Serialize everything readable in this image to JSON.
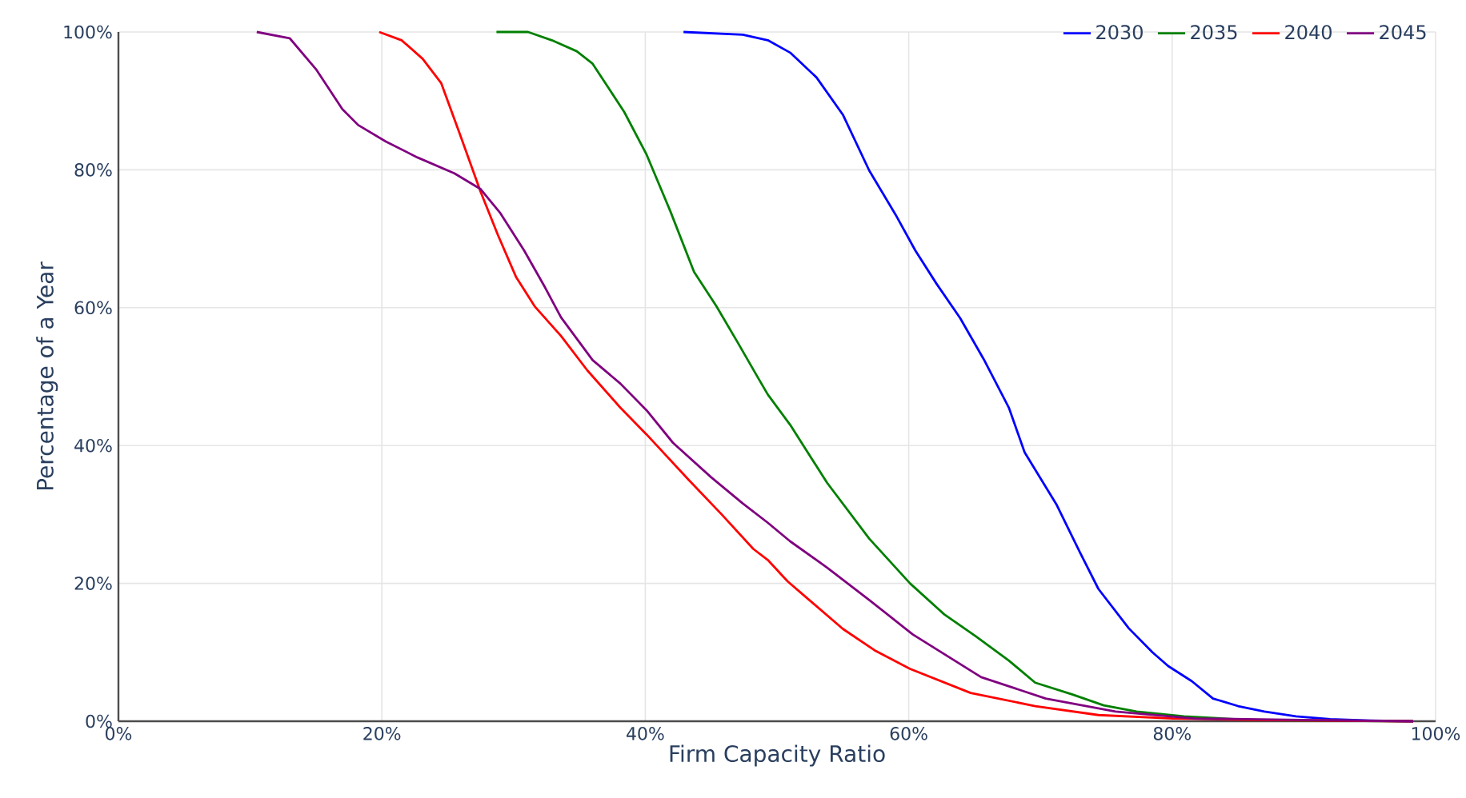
{
  "chart_data": {
    "type": "line",
    "xlabel": "Firm Capacity Ratio",
    "ylabel": "Percentage of a Year",
    "xlim": [
      0,
      100
    ],
    "ylim": [
      0,
      100
    ],
    "xticks": [
      {
        "value": 0,
        "label": "0%"
      },
      {
        "value": 20,
        "label": "20%"
      },
      {
        "value": 40,
        "label": "40%"
      },
      {
        "value": 60,
        "label": "60%"
      },
      {
        "value": 80,
        "label": "80%"
      },
      {
        "value": 100,
        "label": "100%"
      }
    ],
    "yticks": [
      {
        "value": 0,
        "label": "0%"
      },
      {
        "value": 20,
        "label": "20%"
      },
      {
        "value": 40,
        "label": "40%"
      },
      {
        "value": 60,
        "label": "60%"
      },
      {
        "value": 80,
        "label": "80%"
      },
      {
        "value": 100,
        "label": "100%"
      }
    ],
    "grid": true,
    "legend": "top right",
    "line_style": "solid",
    "marker": "none",
    "series": [
      {
        "name": "2030",
        "color": "#0000ff",
        "x": [
          42.9,
          47.4,
          49.3,
          51.0,
          53.0,
          55.0,
          57.0,
          59.0,
          60.5,
          62.1,
          63.9,
          65.7,
          67.6,
          68.8,
          71.2,
          73.0,
          74.4,
          76.7,
          78.5,
          79.7,
          81.5,
          83.1,
          85.0,
          87.0,
          89.4,
          92.0,
          95.0,
          98.3
        ],
        "values": [
          100,
          99.6,
          98.8,
          97,
          93.4,
          88,
          79.9,
          73.5,
          68.3,
          63.5,
          58.5,
          52.5,
          45.5,
          39,
          31.5,
          24.5,
          19.2,
          13.5,
          10,
          8,
          5.8,
          3.3,
          2.2,
          1.4,
          0.7,
          0.3,
          0.1,
          0
        ]
      },
      {
        "name": "2035",
        "color": "#008000",
        "x": [
          28.7,
          31.1,
          32.9,
          34.8,
          36.0,
          37.2,
          38.4,
          40.1,
          41.9,
          43.7,
          45.4,
          47.0,
          48.6,
          49.3,
          51.0,
          53.8,
          57.0,
          60.1,
          62.7,
          65.1,
          67.6,
          69.6,
          72.4,
          74.8,
          77.3,
          80.9,
          85.8,
          90.6,
          98.3
        ],
        "values": [
          100,
          100,
          98.8,
          97.2,
          95.4,
          91.9,
          88.4,
          82.2,
          74,
          65.2,
          60.2,
          55,
          49.7,
          47.4,
          43,
          34.6,
          26.5,
          20,
          15.5,
          12.3,
          8.8,
          5.6,
          3.9,
          2.3,
          1.4,
          0.7,
          0.2,
          0.1,
          0
        ]
      },
      {
        "name": "2040",
        "color": "#ff0000",
        "x": [
          19.8,
          21.5,
          23.1,
          24.5,
          25.9,
          27.5,
          28.8,
          30.2,
          31.6,
          33.6,
          35.6,
          38.1,
          40.1,
          43.3,
          45.8,
          48.2,
          49.3,
          50.8,
          52.2,
          55.0,
          57.4,
          60.1,
          64.7,
          69.6,
          74.4,
          80.1,
          85.8,
          98.3
        ],
        "values": [
          100,
          98.8,
          96.1,
          92.6,
          85.3,
          76.8,
          70.6,
          64.4,
          60.2,
          55.9,
          50.9,
          45.5,
          41.6,
          35,
          30,
          25,
          23.4,
          20.3,
          18,
          13.4,
          10.3,
          7.6,
          4.1,
          2.2,
          0.9,
          0.4,
          0.2,
          0
        ]
      },
      {
        "name": "2045",
        "color": "#800080",
        "x": [
          10.5,
          13.0,
          15.0,
          17.0,
          18.2,
          20.3,
          22.7,
          25.5,
          27.5,
          29.0,
          30.8,
          32.4,
          33.6,
          36.0,
          38.1,
          40.1,
          42.1,
          45.0,
          47.4,
          49.3,
          51.0,
          53.8,
          57.0,
          60.3,
          65.5,
          70.4,
          75.7,
          81.7,
          89.8,
          98.3
        ],
        "values": [
          100,
          99.1,
          94.6,
          88.8,
          86.5,
          84.1,
          81.8,
          79.5,
          77.2,
          73.7,
          68.3,
          62.9,
          58.6,
          52.4,
          49,
          45.1,
          40.4,
          35.4,
          31.6,
          28.8,
          26.1,
          22.3,
          17.6,
          12.6,
          6.4,
          3.3,
          1.4,
          0.4,
          0.2,
          0
        ]
      }
    ]
  }
}
